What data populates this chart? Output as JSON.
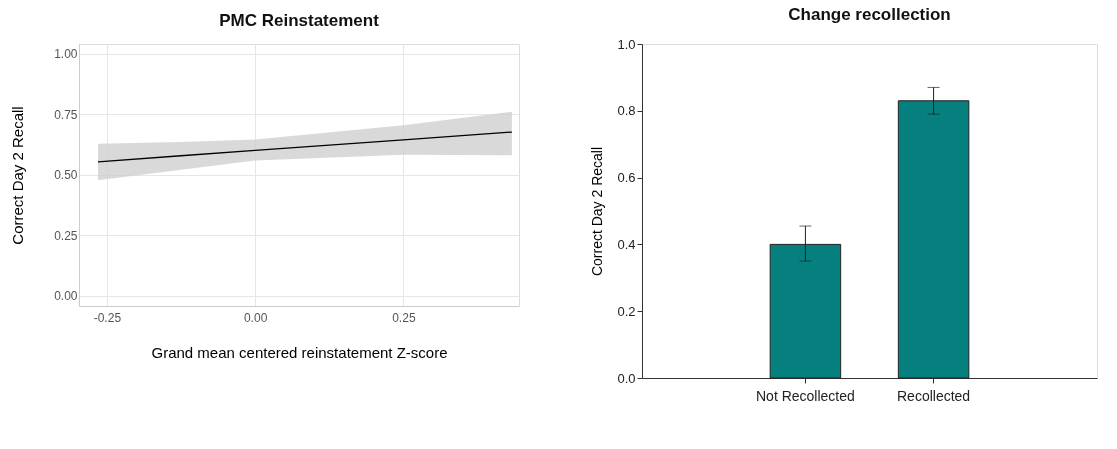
{
  "chart_data": [
    {
      "type": "line",
      "title": "PMC Reinstatement",
      "xlabel": "Grand mean centered reinstatement Z-score",
      "ylabel": "Correct Day 2 Recall",
      "x": [
        -0.265,
        -0.125,
        0,
        0.25,
        0.433
      ],
      "series": [
        {
          "color": "#000000",
          "values": [
            0.553,
            0.578,
            0.6,
            0.644,
            0.676
          ],
          "lower": [
            0.477,
            0.52,
            0.558,
            0.582,
            0.58
          ],
          "upper": [
            0.628,
            0.635,
            0.645,
            0.704,
            0.76
          ]
        }
      ],
      "xlim": [
        -0.297,
        0.445
      ],
      "ylim": [
        -0.043,
        1.04
      ],
      "xticks": [
        -0.25,
        {
          "value": 0,
          "label": "0.00"
        },
        0.25
      ],
      "yticks": [
        {
          "value": 0,
          "label": "0.00"
        },
        0.25,
        {
          "value": 0.5,
          "label": "0.50"
        },
        0.75,
        {
          "value": 1,
          "label": "1.00"
        }
      ],
      "grid": true,
      "marker": "none",
      "line_style": "solid"
    },
    {
      "type": "bar",
      "title": "Change recollection",
      "ylabel": "Correct Day 2 Recall",
      "categories": [
        "Not Recollected",
        "Recollected"
      ],
      "values": [
        0.4,
        0.83
      ],
      "errors": [
        [
          0.35,
          0.455
        ],
        [
          0.79,
          0.87
        ]
      ],
      "color": "#067f7f",
      "ylim": [
        0,
        1
      ],
      "yticks": [
        {
          "value": 0,
          "label": "0.0"
        },
        {
          "value": 0.2,
          "label": "0.2"
        },
        {
          "value": 0.4,
          "label": "0.4"
        },
        {
          "value": 0.6,
          "label": "0.6"
        },
        {
          "value": 0.8,
          "label": "0.8"
        },
        {
          "value": 1,
          "label": "1.0"
        }
      ]
    }
  ]
}
